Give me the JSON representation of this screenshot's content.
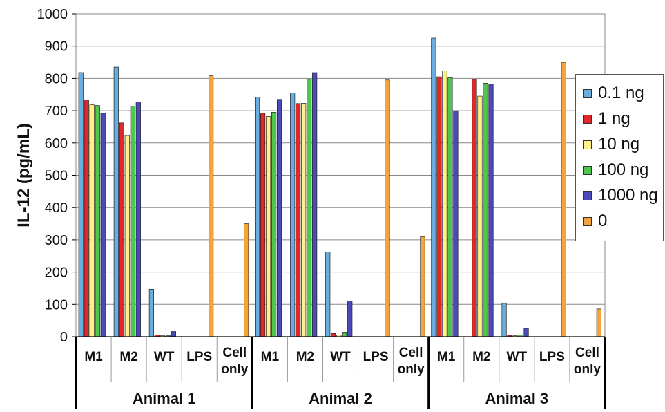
{
  "chart_data": {
    "type": "bar",
    "ylabel": "IL-12 (pg/mL)",
    "ylim": [
      0,
      1000
    ],
    "yticks": [
      0,
      100,
      200,
      300,
      400,
      500,
      600,
      700,
      800,
      900,
      1000
    ],
    "grid": true,
    "legend_position": "right",
    "groups": [
      {
        "name": "Animal 1",
        "categories": [
          "M1",
          "M2",
          "WT",
          "LPS",
          "Cell only"
        ]
      },
      {
        "name": "Animal 2",
        "categories": [
          "M1",
          "M2",
          "WT",
          "LPS",
          "Cell only"
        ]
      },
      {
        "name": "Animal 3",
        "categories": [
          "M1",
          "M2",
          "WT",
          "LPS",
          "Cell only"
        ]
      }
    ],
    "category_lines": [
      [
        "M1"
      ],
      [
        "M2"
      ],
      [
        "WT"
      ],
      [
        "LPS"
      ],
      [
        "Cell",
        "only"
      ]
    ],
    "series": [
      {
        "name": "0.1 ng",
        "color": "#6aaee0",
        "values": [
          818,
          835,
          147,
          null,
          null,
          742,
          755,
          262,
          null,
          null,
          925,
          null,
          103,
          null,
          null
        ]
      },
      {
        "name": "1 ng",
        "color": "#e02828",
        "values": [
          733,
          662,
          5,
          null,
          null,
          693,
          722,
          10,
          null,
          null,
          805,
          797,
          4,
          null,
          null
        ]
      },
      {
        "name": "10 ng",
        "color": "#fff08a",
        "values": [
          718,
          623,
          3,
          null,
          null,
          682,
          723,
          5,
          null,
          null,
          823,
          745,
          3,
          null,
          null
        ]
      },
      {
        "name": "100 ng",
        "color": "#4cc84c",
        "values": [
          716,
          714,
          3,
          null,
          null,
          695,
          797,
          14,
          null,
          null,
          802,
          785,
          5,
          null,
          null
        ]
      },
      {
        "name": "1000 ng",
        "color": "#4a4ab8",
        "values": [
          692,
          727,
          16,
          null,
          null,
          735,
          818,
          110,
          null,
          null,
          700,
          782,
          26,
          null,
          null
        ]
      },
      {
        "name": "0",
        "color": "#f5a33c",
        "values": [
          null,
          null,
          null,
          808,
          350,
          null,
          null,
          null,
          795,
          310,
          null,
          null,
          null,
          850,
          86
        ]
      }
    ]
  }
}
